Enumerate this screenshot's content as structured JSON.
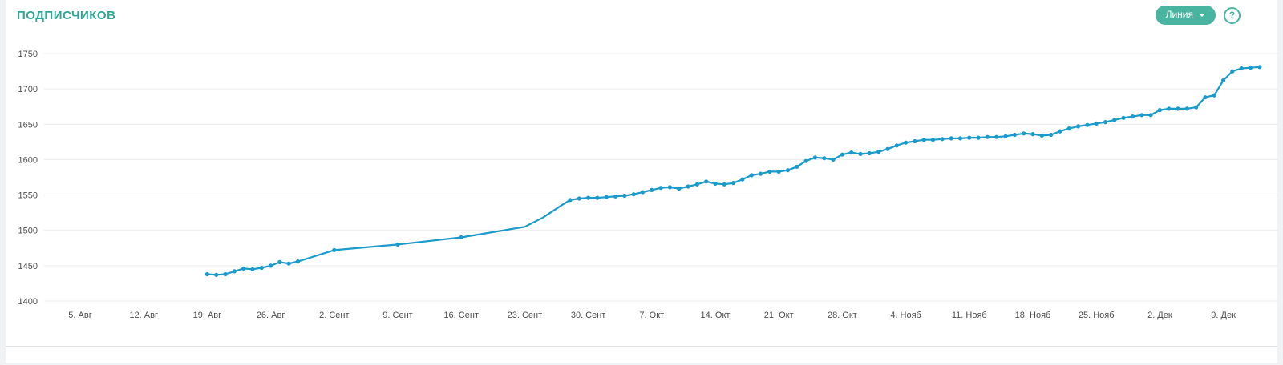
{
  "header": {
    "title": "ПОДПИСЧИКОВ",
    "chart_type_label": "Линия",
    "help_label": "?"
  },
  "colors": {
    "accent_teal": "#49b4a0",
    "line_blue": "#1a9bcb",
    "grid": "#ececec",
    "axis_text": "#4d4d4d"
  },
  "chart_data": {
    "type": "line",
    "title": "ПОДПИСЧИКОВ",
    "xlabel": "",
    "ylabel": "",
    "grid": true,
    "legend": "none",
    "ylim": [
      1400,
      1750
    ],
    "y_ticks": [
      1400,
      1450,
      1500,
      1550,
      1600,
      1650,
      1700,
      1750
    ],
    "line_color": "#1a9bcb",
    "x_ticks": [
      {
        "day": 0,
        "label": "5. Авг"
      },
      {
        "day": 7,
        "label": "12. Авг"
      },
      {
        "day": 14,
        "label": "19. Авг"
      },
      {
        "day": 21,
        "label": "26. Авг"
      },
      {
        "day": 28,
        "label": "2. Сент"
      },
      {
        "day": 35,
        "label": "9. Сент"
      },
      {
        "day": 42,
        "label": "16. Сент"
      },
      {
        "day": 49,
        "label": "23. Сент"
      },
      {
        "day": 56,
        "label": "30. Сент"
      },
      {
        "day": 63,
        "label": "7. Окт"
      },
      {
        "day": 70,
        "label": "14. Окт"
      },
      {
        "day": 77,
        "label": "21. Окт"
      },
      {
        "day": 84,
        "label": "28. Окт"
      },
      {
        "day": 91,
        "label": "4. Нояб"
      },
      {
        "day": 98,
        "label": "11. Нояб"
      },
      {
        "day": 105,
        "label": "18. Нояб"
      },
      {
        "day": 112,
        "label": "25. Нояб"
      },
      {
        "day": 119,
        "label": "2. Дек"
      },
      {
        "day": 126,
        "label": "9. Дек"
      }
    ],
    "points": [
      [
        14,
        1438
      ],
      [
        15,
        1437
      ],
      [
        16,
        1438
      ],
      [
        17,
        1442
      ],
      [
        18,
        1446
      ],
      [
        19,
        1445
      ],
      [
        20,
        1447
      ],
      [
        21,
        1450
      ],
      [
        22,
        1455
      ],
      [
        23,
        1453
      ],
      [
        24,
        1456
      ],
      [
        28,
        1472
      ],
      [
        35,
        1480
      ],
      [
        42,
        1490
      ],
      [
        49,
        1505,
        0
      ],
      [
        51,
        1518,
        0
      ],
      [
        53,
        1535,
        0
      ],
      [
        54,
        1543
      ],
      [
        55,
        1545
      ],
      [
        56,
        1546
      ],
      [
        57,
        1546
      ],
      [
        58,
        1547
      ],
      [
        59,
        1548
      ],
      [
        60,
        1549
      ],
      [
        61,
        1551
      ],
      [
        62,
        1554
      ],
      [
        63,
        1557
      ],
      [
        64,
        1560
      ],
      [
        65,
        1561
      ],
      [
        66,
        1559
      ],
      [
        67,
        1562
      ],
      [
        68,
        1565
      ],
      [
        69,
        1569
      ],
      [
        70,
        1566
      ],
      [
        71,
        1565
      ],
      [
        72,
        1567
      ],
      [
        73,
        1572
      ],
      [
        74,
        1578
      ],
      [
        75,
        1580
      ],
      [
        76,
        1583
      ],
      [
        77,
        1583
      ],
      [
        78,
        1585
      ],
      [
        79,
        1590
      ],
      [
        80,
        1598
      ],
      [
        81,
        1603
      ],
      [
        82,
        1602
      ],
      [
        83,
        1600
      ],
      [
        84,
        1607
      ],
      [
        85,
        1610
      ],
      [
        86,
        1608
      ],
      [
        87,
        1609
      ],
      [
        88,
        1611
      ],
      [
        89,
        1615
      ],
      [
        90,
        1620
      ],
      [
        91,
        1624
      ],
      [
        92,
        1626
      ],
      [
        93,
        1628
      ],
      [
        94,
        1628
      ],
      [
        95,
        1629
      ],
      [
        96,
        1630
      ],
      [
        97,
        1630
      ],
      [
        98,
        1631
      ],
      [
        99,
        1631
      ],
      [
        100,
        1632
      ],
      [
        101,
        1632
      ],
      [
        102,
        1633
      ],
      [
        103,
        1635
      ],
      [
        104,
        1637
      ],
      [
        105,
        1636
      ],
      [
        106,
        1634
      ],
      [
        107,
        1635
      ],
      [
        108,
        1640
      ],
      [
        109,
        1644
      ],
      [
        110,
        1647
      ],
      [
        111,
        1649
      ],
      [
        112,
        1651
      ],
      [
        113,
        1653
      ],
      [
        114,
        1656
      ],
      [
        115,
        1659
      ],
      [
        116,
        1661
      ],
      [
        117,
        1663
      ],
      [
        118,
        1663
      ],
      [
        119,
        1670
      ],
      [
        120,
        1672
      ],
      [
        121,
        1672
      ],
      [
        122,
        1672
      ],
      [
        123,
        1674
      ],
      [
        124,
        1688
      ],
      [
        125,
        1691
      ],
      [
        126,
        1712
      ],
      [
        127,
        1725
      ],
      [
        128,
        1729
      ],
      [
        129,
        1730
      ],
      [
        130,
        1731
      ]
    ]
  }
}
